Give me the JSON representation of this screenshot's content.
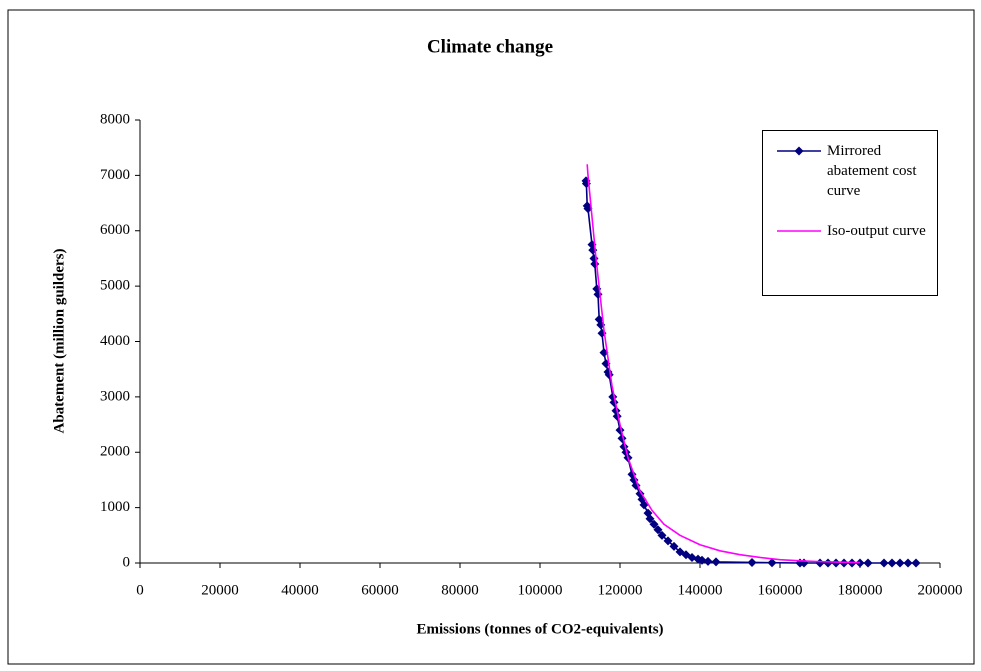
{
  "chart_data": {
    "type": "line",
    "title": "Climate change",
    "x_label": "Emissions (tonnes of CO2-equivalents)",
    "y_label": "Abatement (million guilders)",
    "xlim": [
      0,
      200000
    ],
    "xticks": [
      0,
      20000,
      40000,
      60000,
      80000,
      100000,
      120000,
      140000,
      160000,
      180000,
      200000
    ],
    "ylim": [
      0,
      8000
    ],
    "yticks": [
      0,
      1000,
      2000,
      3000,
      4000,
      5000,
      6000,
      7000,
      8000
    ],
    "grid": false,
    "legend": "upper right",
    "series": [
      {
        "name": "Mirrored abatement cost curve",
        "color": "#000080",
        "marker": "diamond",
        "x": [
          111500,
          111600,
          111800,
          112000,
          113000,
          113200,
          113500,
          113700,
          114200,
          114500,
          114800,
          115200,
          115500,
          116000,
          116500,
          117000,
          117300,
          118200,
          118500,
          119000,
          119300,
          120000,
          120500,
          121000,
          121500,
          122000,
          123000,
          123500,
          124000,
          125000,
          125500,
          126000,
          127000,
          127500,
          128500,
          129500,
          130500,
          132000,
          133500,
          135000,
          136500,
          138000,
          139500,
          140500,
          142000,
          144000,
          153000,
          158000,
          165000,
          166000,
          170000,
          172000,
          174000,
          176000,
          178000,
          180000,
          182000,
          186000,
          188000,
          190000,
          192000,
          194000
        ],
        "values": [
          6900,
          6850,
          6450,
          6400,
          5750,
          5650,
          5500,
          5400,
          4950,
          4850,
          4400,
          4300,
          4150,
          3800,
          3600,
          3450,
          3400,
          3000,
          2900,
          2750,
          2650,
          2400,
          2250,
          2100,
          2000,
          1900,
          1600,
          1500,
          1400,
          1250,
          1150,
          1050,
          900,
          800,
          700,
          600,
          500,
          400,
          300,
          200,
          150,
          100,
          70,
          50,
          30,
          20,
          10,
          5,
          0,
          0,
          0,
          0,
          0,
          0,
          0,
          0,
          0,
          0,
          0,
          0,
          0,
          0
        ]
      },
      {
        "name": "Iso-output curve",
        "color": "#ff00ff",
        "marker": "none",
        "x": [
          111800,
          112000,
          114000,
          116000,
          118000,
          120000,
          122000,
          125000,
          128000,
          131000,
          135000,
          140000,
          145000,
          150000,
          155000,
          160000,
          165000,
          170000,
          175000,
          180000
        ],
        "values": [
          7200,
          7000,
          5500,
          4200,
          3200,
          2500,
          1900,
          1300,
          950,
          700,
          500,
          330,
          220,
          150,
          100,
          60,
          40,
          25,
          15,
          8
        ]
      }
    ]
  }
}
